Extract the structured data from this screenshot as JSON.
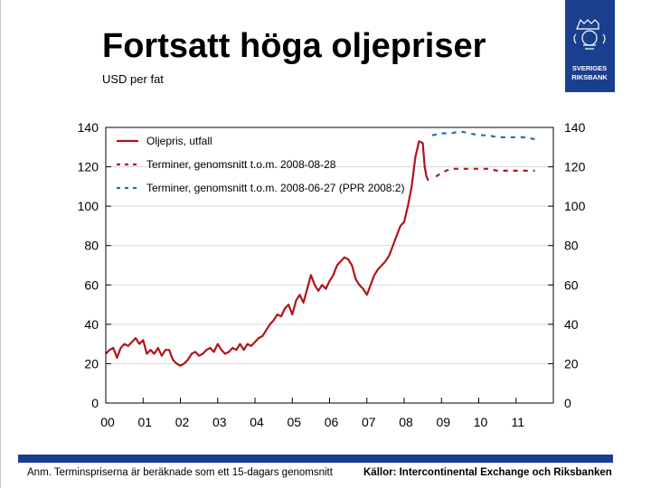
{
  "header": {
    "title": "Fortsatt höga oljepriser",
    "subtitle": "USD per fat"
  },
  "logo": {
    "text_line1": "SVERIGES",
    "text_line2": "RIKSBANK",
    "color": "#1b3f8f"
  },
  "footer": {
    "note": "Anm. Terminspriserna är beräknade som ett 15-dagars genomsnitt",
    "sources": "Källor: Intercontinental Exchange och Riksbanken"
  },
  "colors": {
    "brand": "#1b3f8f",
    "actual": "#b0141c",
    "futures_aug": "#b0141c",
    "futures_jun": "#1f6fb5"
  },
  "chart_data": {
    "type": "line",
    "title": "Fortsatt höga oljepriser",
    "ylabel": "USD per fat",
    "ylim": [
      0,
      140
    ],
    "yticks": [
      0,
      20,
      40,
      60,
      80,
      100,
      120,
      140
    ],
    "xlim": [
      2000,
      2012
    ],
    "xticks": [
      {
        "v": 2000,
        "label": "00"
      },
      {
        "v": 2001,
        "label": "01"
      },
      {
        "v": 2002,
        "label": "02"
      },
      {
        "v": 2003,
        "label": "03"
      },
      {
        "v": 2004,
        "label": "04"
      },
      {
        "v": 2005,
        "label": "05"
      },
      {
        "v": 2006,
        "label": "06"
      },
      {
        "v": 2007,
        "label": "07"
      },
      {
        "v": 2008,
        "label": "08"
      },
      {
        "v": 2009,
        "label": "09"
      },
      {
        "v": 2010,
        "label": "10"
      },
      {
        "v": 2011,
        "label": "11"
      }
    ],
    "grid": "horizontal",
    "legend_placement": "top-left",
    "series": [
      {
        "name": "Oljepris, utfall",
        "style": "solid",
        "x": [
          2000.0,
          2000.1,
          2000.2,
          2000.3,
          2000.4,
          2000.5,
          2000.6,
          2000.7,
          2000.8,
          2000.9,
          2001.0,
          2001.1,
          2001.2,
          2001.3,
          2001.4,
          2001.5,
          2001.6,
          2001.7,
          2001.8,
          2001.9,
          2002.0,
          2002.1,
          2002.2,
          2002.3,
          2002.4,
          2002.5,
          2002.6,
          2002.7,
          2002.8,
          2002.9,
          2003.0,
          2003.1,
          2003.2,
          2003.3,
          2003.4,
          2003.5,
          2003.6,
          2003.7,
          2003.8,
          2003.9,
          2004.0,
          2004.1,
          2004.2,
          2004.3,
          2004.4,
          2004.5,
          2004.6,
          2004.7,
          2004.8,
          2004.9,
          2005.0,
          2005.1,
          2005.2,
          2005.3,
          2005.4,
          2005.5,
          2005.6,
          2005.7,
          2005.8,
          2005.9,
          2006.0,
          2006.1,
          2006.2,
          2006.3,
          2006.4,
          2006.5,
          2006.6,
          2006.7,
          2006.8,
          2006.9,
          2007.0,
          2007.1,
          2007.2,
          2007.3,
          2007.4,
          2007.5,
          2007.6,
          2007.7,
          2007.8,
          2007.9,
          2008.0,
          2008.1,
          2008.2,
          2008.3,
          2008.4,
          2008.5,
          2008.55,
          2008.6,
          2008.65
        ],
        "y": [
          25,
          27,
          28,
          23,
          28,
          30,
          29,
          31,
          33,
          30,
          32,
          25,
          27,
          25,
          28,
          24,
          27,
          27,
          22,
          20,
          19,
          20,
          22,
          25,
          26,
          24,
          25,
          27,
          28,
          26,
          30,
          27,
          25,
          26,
          28,
          27,
          30,
          27,
          30,
          29,
          31,
          33,
          34,
          37,
          40,
          42,
          45,
          44,
          48,
          50,
          45,
          52,
          55,
          51,
          58,
          65,
          60,
          57,
          60,
          58,
          62,
          65,
          70,
          72,
          74,
          73,
          70,
          63,
          60,
          58,
          55,
          60,
          65,
          68,
          70,
          72,
          75,
          80,
          85,
          90,
          92,
          100,
          110,
          125,
          133,
          132,
          120,
          115,
          113
        ]
      },
      {
        "name": "Terminer, genomsnitt t.o.m. 2008-08-28",
        "style": "dashed",
        "x": [
          2008.85,
          2009.0,
          2009.25,
          2009.5,
          2009.75,
          2010.0,
          2010.25,
          2010.5,
          2010.75,
          2011.0,
          2011.25,
          2011.5
        ],
        "y": [
          115,
          117,
          119,
          119,
          119,
          119,
          119,
          118,
          118,
          118,
          118,
          118
        ]
      },
      {
        "name": "Terminer, genomsnitt t.o.m. 2008-06-27 (PPR 2008:2)",
        "style": "dashed",
        "x": [
          2008.75,
          2009.0,
          2009.25,
          2009.5,
          2009.75,
          2010.0,
          2010.25,
          2010.5,
          2010.75,
          2011.0,
          2011.25,
          2011.5
        ],
        "y": [
          136,
          137,
          137,
          138,
          137,
          136,
          136,
          135,
          135,
          135,
          135,
          134
        ]
      }
    ]
  }
}
